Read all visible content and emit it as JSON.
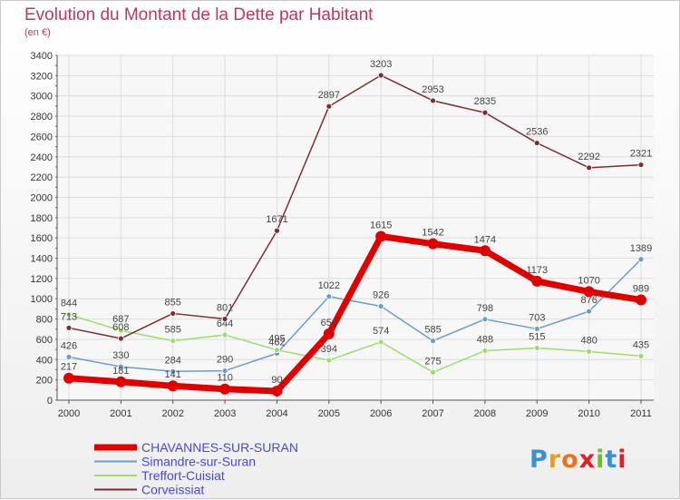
{
  "header": {
    "title": "Evolution du Montant de la Dette par Habitant",
    "unit": "(en €)"
  },
  "logo": {
    "text": "Proxiti",
    "colors": [
      "#3a8fd6",
      "#f39c12",
      "#e8741e",
      "#e02020",
      "#6bbf2b",
      "#3a8fd6",
      "#e02020"
    ]
  },
  "chart_data": {
    "type": "line",
    "x": [
      "2000",
      "2001",
      "2002",
      "2003",
      "2004",
      "2005",
      "2006",
      "2007",
      "2008",
      "2009",
      "2010",
      "2011"
    ],
    "ylim": [
      0,
      3400
    ],
    "yticks": [
      0,
      200,
      400,
      600,
      800,
      1000,
      1200,
      1400,
      1600,
      1800,
      2000,
      2200,
      2400,
      2600,
      2800,
      3000,
      3200,
      3400
    ],
    "grid": true,
    "legend_position": "bottom-left",
    "series": [
      {
        "name": "CHAVANNES-SUR-SURAN",
        "color": "#e00000",
        "width": 7,
        "values": [
          217,
          181,
          141,
          110,
          90,
          654,
          1615,
          1542,
          1474,
          1173,
          1070,
          989
        ]
      },
      {
        "name": "Simandre-sur-Suran",
        "color": "#6a9ccc",
        "width": 1.5,
        "values": [
          426,
          330,
          284,
          290,
          462,
          1022,
          926,
          585,
          798,
          703,
          876,
          1389
        ]
      },
      {
        "name": "Treffort-Cuisiat",
        "color": "#9fdc6e",
        "width": 1.5,
        "values": [
          844,
          687,
          585,
          644,
          495,
          394,
          574,
          275,
          488,
          515,
          480,
          435
        ]
      },
      {
        "name": "Corveissiat",
        "color": "#7a2e34",
        "width": 1.5,
        "values": [
          713,
          608,
          855,
          801,
          1671,
          2897,
          3203,
          2953,
          2835,
          2536,
          2292,
          2321
        ]
      }
    ]
  }
}
